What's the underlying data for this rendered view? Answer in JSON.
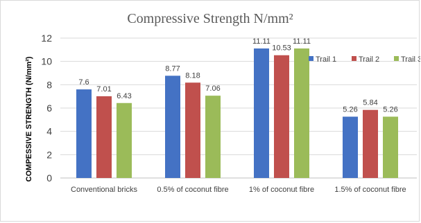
{
  "chart_data": {
    "type": "bar",
    "title": "Compressive Strength N/mm²",
    "ylabel": "COMPESSIVE STRENGTH (N/mm²)",
    "xlabel": "",
    "categories": [
      "Conventional bricks",
      "0.5% of coconut fibre",
      "1% of coconut fibre",
      "1.5% of coconut fibre"
    ],
    "series": [
      {
        "name": "Trail 1",
        "color": "#4472c4",
        "values": [
          7.6,
          8.77,
          11.11,
          5.26
        ],
        "labels": [
          "7.6",
          "8.77",
          "11.11",
          "5.26"
        ]
      },
      {
        "name": "Trail 2",
        "color": "#c0504d",
        "values": [
          7.01,
          8.18,
          10.53,
          5.84
        ],
        "labels": [
          "7.01",
          "8.18",
          "10.53",
          "5.84"
        ]
      },
      {
        "name": "Trail 3",
        "color": "#9bbb59",
        "values": [
          6.43,
          7.06,
          11.11,
          5.26
        ],
        "labels": [
          "6.43",
          "7.06",
          "11.11",
          "5.26"
        ]
      }
    ],
    "ylim": [
      0,
      12
    ],
    "yticks": [
      "0",
      "2",
      "4",
      "6",
      "8",
      "10",
      "12"
    ],
    "grid": true,
    "legend_position": "right"
  }
}
